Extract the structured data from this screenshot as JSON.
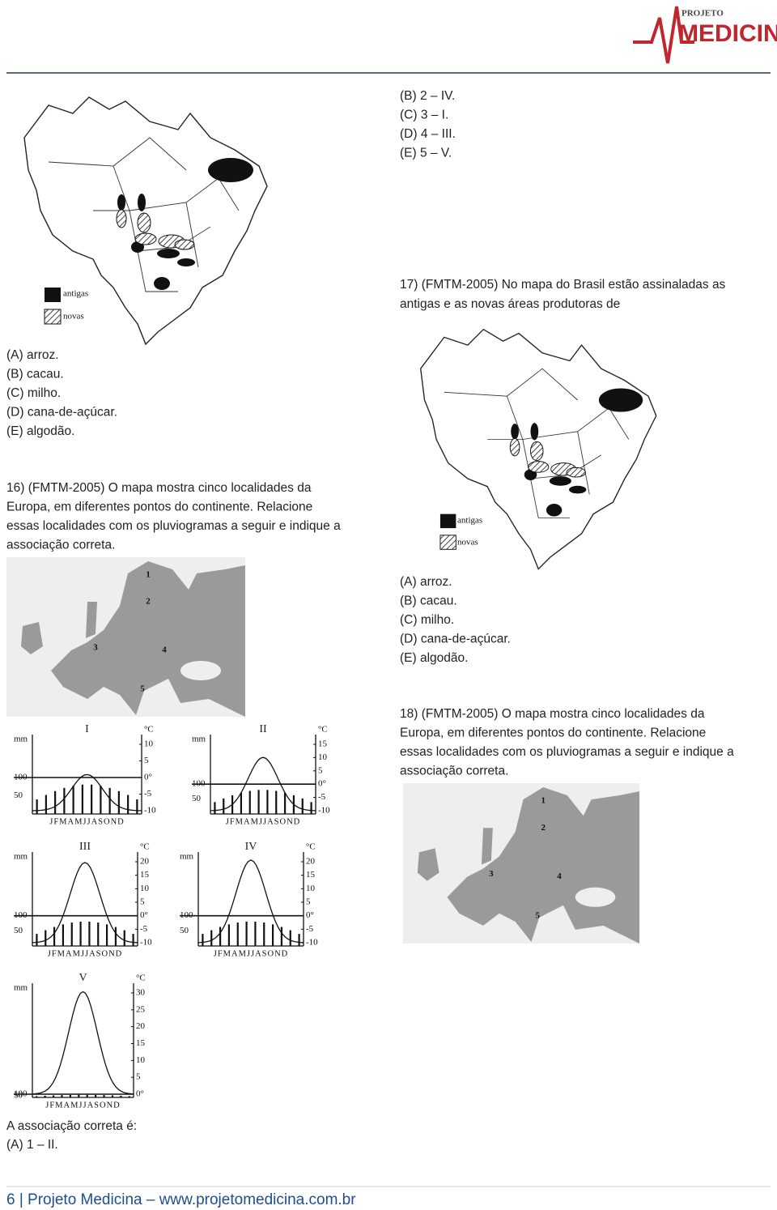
{
  "header": {
    "logo_top": "PROJETO",
    "logo_main": "MEDICINA"
  },
  "brazil_legend": [
    "antigas",
    "novas"
  ],
  "right_top_options": [
    "(B) 2 – IV.",
    "(C) 3 – I.",
    "(D) 4 – III.",
    "(E) 5 – V."
  ],
  "q17": {
    "lines": [
      "17) (FMTM-2005) No mapa do Brasil estão assinaladas as",
      "antigas e as novas áreas produtoras de"
    ],
    "options": [
      "(A) arroz.",
      "(B) cacau.",
      "(C) milho.",
      "(D) cana-de-açúcar.",
      "(E) algodão."
    ]
  },
  "q16": {
    "options_prev": [
      "(A) arroz.",
      "(B) cacau.",
      "(C) milho.",
      "(D) cana-de-açúcar.",
      "(E) algodão."
    ],
    "lines": [
      "16) (FMTM-2005) O mapa mostra cinco localidades da",
      "Europa, em diferentes pontos do continente. Relacione",
      "essas localidades com os pluviogramas a seguir e indique a",
      "associação correta."
    ],
    "answer_intro": "A associação correta é:",
    "answer_option": "(A) 1 – II."
  },
  "q18": {
    "lines": [
      "18) (FMTM-2005) O mapa mostra cinco localidades da",
      "Europa, em diferentes pontos do continente. Relacione",
      "essas localidades com os pluviogramas a seguir e indique a",
      "associação correta."
    ]
  },
  "europe_labels": [
    "1",
    "2",
    "3",
    "4",
    "5"
  ],
  "climographs": [
    {
      "label": "I",
      "mm_unit": "mm",
      "c_unit": "°C",
      "left_ticks": [
        "100",
        "50"
      ],
      "right_ticks": [
        "10",
        "5",
        "0°",
        "-5",
        "-10"
      ],
      "months": "JFMAMJJASOND"
    },
    {
      "label": "II",
      "mm_unit": "mm",
      "c_unit": "°C",
      "left_ticks": [
        "100",
        "50"
      ],
      "right_ticks": [
        "15",
        "10",
        "5",
        "0°",
        "-5",
        "-10"
      ],
      "months": "JFMAMJJASOND"
    },
    {
      "label": "III",
      "mm_unit": "mm",
      "c_unit": "°C",
      "left_ticks": [
        "100",
        "50"
      ],
      "right_ticks": [
        "20",
        "15",
        "10",
        "5",
        "0°",
        "-5",
        "-10"
      ],
      "months": "JFMAMJJASOND"
    },
    {
      "label": "IV",
      "mm_unit": "mm",
      "c_unit": "°C",
      "left_ticks": [
        "100",
        "50"
      ],
      "right_ticks": [
        "20",
        "15",
        "10",
        "5",
        "0°",
        "-5",
        "-10"
      ],
      "months": "JFMAMJJASOND"
    },
    {
      "label": "V",
      "mm_unit": "mm",
      "c_unit": "°C",
      "left_ticks": [
        "100",
        "50"
      ],
      "right_ticks": [
        "30",
        "25",
        "20",
        "15",
        "10",
        "5",
        "0°"
      ],
      "months": "JFMAMJJASOND"
    }
  ],
  "footer": "6 | Projeto Medicina – www.projetomedicina.com.br"
}
